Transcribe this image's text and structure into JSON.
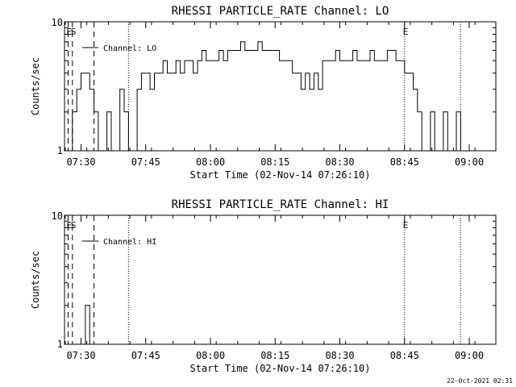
{
  "footer": {
    "timestamp": "22-Oct-2021 02:31"
  },
  "chart_data": [
    {
      "type": "line",
      "title": "RHESSI PARTICLE_RATE Channel: LO",
      "xlabel": "Start Time (02-Nov-14 07:26:10)",
      "ylabel": "Counts/sec",
      "yscale": "log",
      "ylim": [
        1,
        10
      ],
      "y_ticks": [
        "1",
        "10"
      ],
      "xlim_minutes_after_0726": [
        0,
        100
      ],
      "x_ticks": [
        "07:30",
        "07:45",
        "08:00",
        "08:15",
        "08:30",
        "08:45",
        "09:00"
      ],
      "legend": {
        "placement": "top-left",
        "entries": [
          "Channel: LO"
        ]
      },
      "markers": [
        {
          "time": "07:27",
          "style": "dashed",
          "label": "E"
        },
        {
          "time": "07:28",
          "style": "dashed",
          "label": "S"
        },
        {
          "time": "07:33",
          "style": "dashed",
          "label": ""
        },
        {
          "time": "07:41",
          "style": "dotted",
          "label": ""
        },
        {
          "time": "08:45",
          "style": "dotted",
          "label": "E"
        },
        {
          "time": "08:58",
          "style": "dotted",
          "label": ""
        }
      ],
      "series": [
        {
          "name": "Channel: LO",
          "x": [
            "07:26",
            "07:27",
            "07:28",
            "07:29",
            "07:30",
            "07:31",
            "07:32",
            "07:33",
            "07:34",
            "07:35",
            "07:36",
            "07:37",
            "07:38",
            "07:39",
            "07:40",
            "07:41",
            "07:42",
            "07:43",
            "07:44",
            "07:45",
            "07:46",
            "07:47",
            "07:48",
            "07:49",
            "07:50",
            "07:51",
            "07:52",
            "07:53",
            "07:54",
            "07:55",
            "07:56",
            "07:57",
            "07:58",
            "07:59",
            "08:00",
            "08:01",
            "08:02",
            "08:03",
            "08:04",
            "08:05",
            "08:06",
            "08:07",
            "08:08",
            "08:09",
            "08:10",
            "08:11",
            "08:12",
            "08:13",
            "08:14",
            "08:15",
            "08:16",
            "08:17",
            "08:18",
            "08:19",
            "08:20",
            "08:21",
            "08:22",
            "08:23",
            "08:24",
            "08:25",
            "08:26",
            "08:27",
            "08:28",
            "08:29",
            "08:30",
            "08:31",
            "08:32",
            "08:33",
            "08:34",
            "08:35",
            "08:36",
            "08:37",
            "08:38",
            "08:39",
            "08:40",
            "08:41",
            "08:42",
            "08:43",
            "08:44",
            "08:45",
            "08:46",
            "08:47",
            "08:48",
            "08:49",
            "08:50",
            "08:51",
            "08:52",
            "08:53",
            "08:54",
            "08:55",
            "08:56",
            "08:57",
            "08:58"
          ],
          "y": [
            1,
            1,
            2,
            3,
            4,
            4,
            3,
            2,
            1,
            1,
            2,
            1,
            1,
            3,
            2,
            1,
            1,
            3,
            4,
            4,
            3,
            4,
            4,
            5,
            4,
            4,
            5,
            4,
            5,
            5,
            4,
            5,
            6,
            5,
            5,
            5,
            6,
            5,
            6,
            6,
            6,
            7,
            6,
            6,
            6,
            7,
            6,
            6,
            6,
            6,
            5,
            5,
            5,
            4,
            4,
            3,
            4,
            3,
            4,
            3,
            5,
            5,
            5,
            6,
            5,
            5,
            5,
            6,
            5,
            5,
            5,
            6,
            5,
            5,
            5,
            6,
            6,
            5,
            5,
            4,
            4,
            3,
            2,
            1,
            1,
            2,
            1,
            1,
            2,
            1,
            1,
            2,
            1
          ]
        }
      ]
    },
    {
      "type": "line",
      "title": "RHESSI PARTICLE_RATE Channel: HI",
      "xlabel": "Start Time (02-Nov-14 07:26:10)",
      "ylabel": "Counts/sec",
      "yscale": "log",
      "ylim": [
        1,
        10
      ],
      "y_ticks": [
        "1",
        "10"
      ],
      "xlim_minutes_after_0726": [
        0,
        100
      ],
      "x_ticks": [
        "07:30",
        "07:45",
        "08:00",
        "08:15",
        "08:30",
        "08:45",
        "09:00"
      ],
      "legend": {
        "placement": "top-left",
        "entries": [
          "Channel: HI"
        ]
      },
      "markers": [
        {
          "time": "07:27",
          "style": "dashed",
          "label": "E"
        },
        {
          "time": "07:28",
          "style": "dashed",
          "label": "S"
        },
        {
          "time": "07:33",
          "style": "dashed",
          "label": ""
        },
        {
          "time": "07:41",
          "style": "dotted",
          "label": ""
        },
        {
          "time": "08:45",
          "style": "dotted",
          "label": "E"
        },
        {
          "time": "08:58",
          "style": "dotted",
          "label": ""
        }
      ],
      "series": [
        {
          "name": "Channel: HI",
          "x": [
            "07:30",
            "07:31",
            "07:32"
          ],
          "y": [
            1,
            2,
            1
          ]
        }
      ]
    }
  ]
}
